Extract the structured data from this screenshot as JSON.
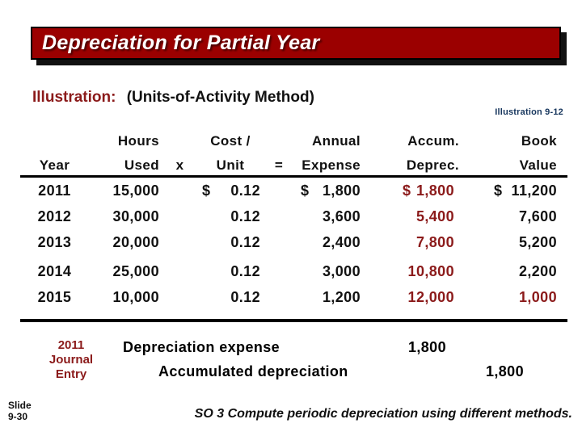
{
  "title": "Depreciation for Partial Year",
  "subtitle": {
    "label": "Illustration:",
    "method": "(Units-of-Activity Method)"
  },
  "illustration_ref": "Illustration 9-12",
  "table": {
    "header_row1": {
      "hours": "Hours",
      "cost": "Cost /",
      "annual": "Annual",
      "accum": "Accum.",
      "book": "Book"
    },
    "header_row2": {
      "year": "Year",
      "used": "Used",
      "x": "x",
      "unit": "Unit",
      "eq": "=",
      "expense": "Expense",
      "deprec": "Deprec.",
      "value": "Value"
    },
    "rows": [
      {
        "year": "2011",
        "hours": "15,000",
        "unit_d": "$",
        "unit": "0.12",
        "exp_d": "$",
        "expense": "1,800",
        "acc_d": "$",
        "accum": "1,800",
        "book_d": "$",
        "book": "11,200"
      },
      {
        "year": "2012",
        "hours": "30,000",
        "unit": "0.12",
        "expense": "3,600",
        "accum": "5,400",
        "book": "7,600"
      },
      {
        "year": "2013",
        "hours": "20,000",
        "unit": "0.12",
        "expense": "2,400",
        "accum": "7,800",
        "book": "5,200"
      },
      {
        "year": "2014",
        "hours": "25,000",
        "unit": "0.12",
        "expense": "3,000",
        "accum": "10,800",
        "book": "2,200"
      },
      {
        "year": "2015",
        "hours": "10,000",
        "unit": "0.12",
        "expense": "1,200",
        "accum": "12,000",
        "book": "1,000"
      }
    ]
  },
  "journal": {
    "label_line1": "2011",
    "label_line2": "Journal",
    "label_line3": "Entry",
    "debit_account": "Depreciation expense",
    "debit_amount": "1,800",
    "credit_account": "Accumulated depreciation",
    "credit_amount": "1,800"
  },
  "footer": {
    "slide_word": "Slide",
    "slide_number": "9-30",
    "so_text": "SO 3  Compute periodic depreciation using different methods."
  },
  "colors": {
    "title_bar_bg": "#9B0000",
    "dark_red_text": "#8B1A1A",
    "illustration_ref_navy": "#17365D",
    "text_black": "#111111"
  }
}
